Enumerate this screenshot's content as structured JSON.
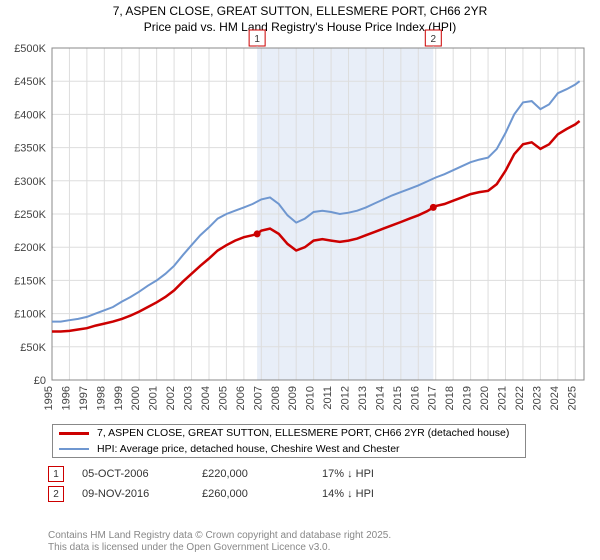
{
  "title_line1": "7, ASPEN CLOSE, GREAT SUTTON, ELLESMERE PORT, CH66 2YR",
  "title_line2": "Price paid vs. HM Land Registry's House Price Index (HPI)",
  "chart": {
    "type": "line",
    "background_color": "#ffffff",
    "plot_border_color": "#888888",
    "grid_color": "#dddddd",
    "shaded_band": {
      "x_start": 2006.76,
      "x_end": 2016.86,
      "fill": "#e8eef8"
    },
    "x": {
      "min": 1995,
      "max": 2025.5,
      "ticks": [
        1995,
        1996,
        1997,
        1998,
        1999,
        2000,
        2001,
        2002,
        2003,
        2004,
        2005,
        2006,
        2007,
        2008,
        2009,
        2010,
        2011,
        2012,
        2013,
        2014,
        2015,
        2016,
        2017,
        2018,
        2019,
        2020,
        2021,
        2022,
        2023,
        2024,
        2025
      ],
      "tick_label_rotation": -90,
      "tick_fontsize": 11,
      "tick_color": "#444444"
    },
    "y": {
      "min": 0,
      "max": 500000,
      "ticks": [
        0,
        50000,
        100000,
        150000,
        200000,
        250000,
        300000,
        350000,
        400000,
        450000,
        500000
      ],
      "tick_labels": [
        "£0",
        "£50K",
        "£100K",
        "£150K",
        "£200K",
        "£250K",
        "£300K",
        "£350K",
        "£400K",
        "£450K",
        "£500K"
      ],
      "tick_fontsize": 11,
      "tick_color": "#444444"
    },
    "series": [
      {
        "name": "price_paid",
        "label": "7, ASPEN CLOSE, GREAT SUTTON, ELLESMERE PORT, CH66 2YR (detached house)",
        "color": "#cc0000",
        "line_width": 2.5,
        "x": [
          1995,
          1995.5,
          1996,
          1996.5,
          1997,
          1997.5,
          1998,
          1998.5,
          1999,
          1999.5,
          2000,
          2000.5,
          2001,
          2001.5,
          2002,
          2002.5,
          2003,
          2003.5,
          2004,
          2004.5,
          2005,
          2005.5,
          2006,
          2006.5,
          2006.76,
          2007,
          2007.5,
          2008,
          2008.5,
          2009,
          2009.5,
          2010,
          2010.5,
          2011,
          2011.5,
          2012,
          2012.5,
          2013,
          2013.5,
          2014,
          2014.5,
          2015,
          2015.5,
          2016,
          2016.5,
          2016.86,
          2017,
          2017.5,
          2018,
          2018.5,
          2019,
          2019.5,
          2020,
          2020.5,
          2021,
          2021.5,
          2022,
          2022.5,
          2023,
          2023.5,
          2024,
          2024.5,
          2025,
          2025.25
        ],
        "y": [
          73000,
          73000,
          74000,
          76000,
          78000,
          82000,
          85000,
          88000,
          92000,
          97000,
          103000,
          110000,
          117000,
          125000,
          135000,
          148000,
          160000,
          172000,
          183000,
          195000,
          203000,
          210000,
          215000,
          218000,
          220000,
          225000,
          228000,
          220000,
          205000,
          195000,
          200000,
          210000,
          212000,
          210000,
          208000,
          210000,
          213000,
          218000,
          223000,
          228000,
          233000,
          238000,
          243000,
          248000,
          254000,
          260000,
          262000,
          265000,
          270000,
          275000,
          280000,
          283000,
          285000,
          295000,
          315000,
          340000,
          355000,
          358000,
          348000,
          355000,
          370000,
          378000,
          385000,
          390000
        ]
      },
      {
        "name": "hpi",
        "label": "HPI: Average price, detached house, Cheshire West and Chester",
        "color": "#6f97d0",
        "line_width": 2,
        "x": [
          1995,
          1995.5,
          1996,
          1996.5,
          1997,
          1997.5,
          1998,
          1998.5,
          1999,
          1999.5,
          2000,
          2000.5,
          2001,
          2001.5,
          2002,
          2002.5,
          2003,
          2003.5,
          2004,
          2004.5,
          2005,
          2005.5,
          2006,
          2006.5,
          2007,
          2007.5,
          2008,
          2008.5,
          2009,
          2009.5,
          2010,
          2010.5,
          2011,
          2011.5,
          2012,
          2012.5,
          2013,
          2013.5,
          2014,
          2014.5,
          2015,
          2015.5,
          2016,
          2016.5,
          2017,
          2017.5,
          2018,
          2018.5,
          2019,
          2019.5,
          2020,
          2020.5,
          2021,
          2021.5,
          2022,
          2022.5,
          2023,
          2023.5,
          2024,
          2024.5,
          2025,
          2025.25
        ],
        "y": [
          88000,
          88000,
          90000,
          92000,
          95000,
          100000,
          105000,
          110000,
          118000,
          125000,
          133000,
          142000,
          150000,
          160000,
          172000,
          188000,
          203000,
          218000,
          230000,
          243000,
          250000,
          255000,
          260000,
          265000,
          272000,
          275000,
          265000,
          248000,
          237000,
          243000,
          253000,
          255000,
          253000,
          250000,
          252000,
          255000,
          260000,
          266000,
          272000,
          278000,
          283000,
          288000,
          293000,
          299000,
          305000,
          310000,
          316000,
          322000,
          328000,
          332000,
          335000,
          348000,
          372000,
          400000,
          418000,
          420000,
          408000,
          415000,
          432000,
          438000,
          445000,
          450000
        ]
      }
    ],
    "markers": [
      {
        "id": "1",
        "x": 2006.76,
        "y": 220000,
        "box_color": "#cc0000",
        "dot_color": "#cc0000"
      },
      {
        "id": "2",
        "x": 2016.86,
        "y": 260000,
        "box_color": "#cc0000",
        "dot_color": "#cc0000"
      }
    ]
  },
  "legend": {
    "rows": [
      {
        "color": "#cc0000",
        "thickness": 3,
        "label_key": "chart.series.0.label"
      },
      {
        "color": "#6f97d0",
        "thickness": 2,
        "label_key": "chart.series.1.label"
      }
    ]
  },
  "marker_table": {
    "rows": [
      {
        "id": "1",
        "date": "05-OCT-2006",
        "price": "£220,000",
        "delta": "17% ↓ HPI",
        "box_color": "#cc0000"
      },
      {
        "id": "2",
        "date": "09-NOV-2016",
        "price": "£260,000",
        "delta": "14% ↓ HPI",
        "box_color": "#cc0000"
      }
    ]
  },
  "footer": {
    "line1": "Contains HM Land Registry data © Crown copyright and database right 2025.",
    "line2": "This data is licensed under the Open Government Licence v3.0."
  }
}
